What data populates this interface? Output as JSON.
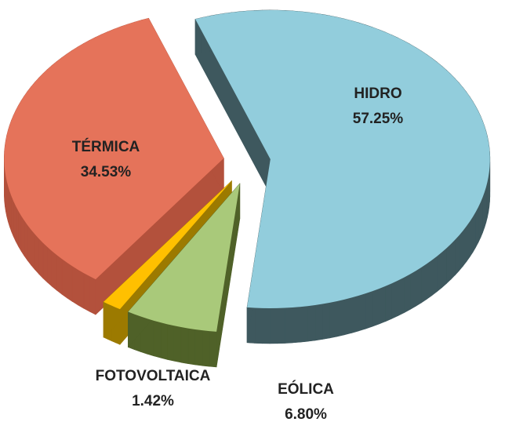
{
  "chart_data": {
    "type": "pie3d",
    "categories": [
      "HIDRO",
      "EÓLICA",
      "FOTOVOLTAICA",
      "TÉRMICA"
    ],
    "values": [
      57.25,
      6.8,
      1.42,
      34.53
    ],
    "value_labels": [
      "57.25%",
      "6.80%",
      "1.42%",
      "34.53%"
    ],
    "colors": [
      "#92cddc",
      "#a9c97a",
      "#ffc000",
      "#e5735a"
    ],
    "side_colors": [
      "#3e585e",
      "#4f6128",
      "#9c7a00",
      "#b3513c"
    ]
  }
}
